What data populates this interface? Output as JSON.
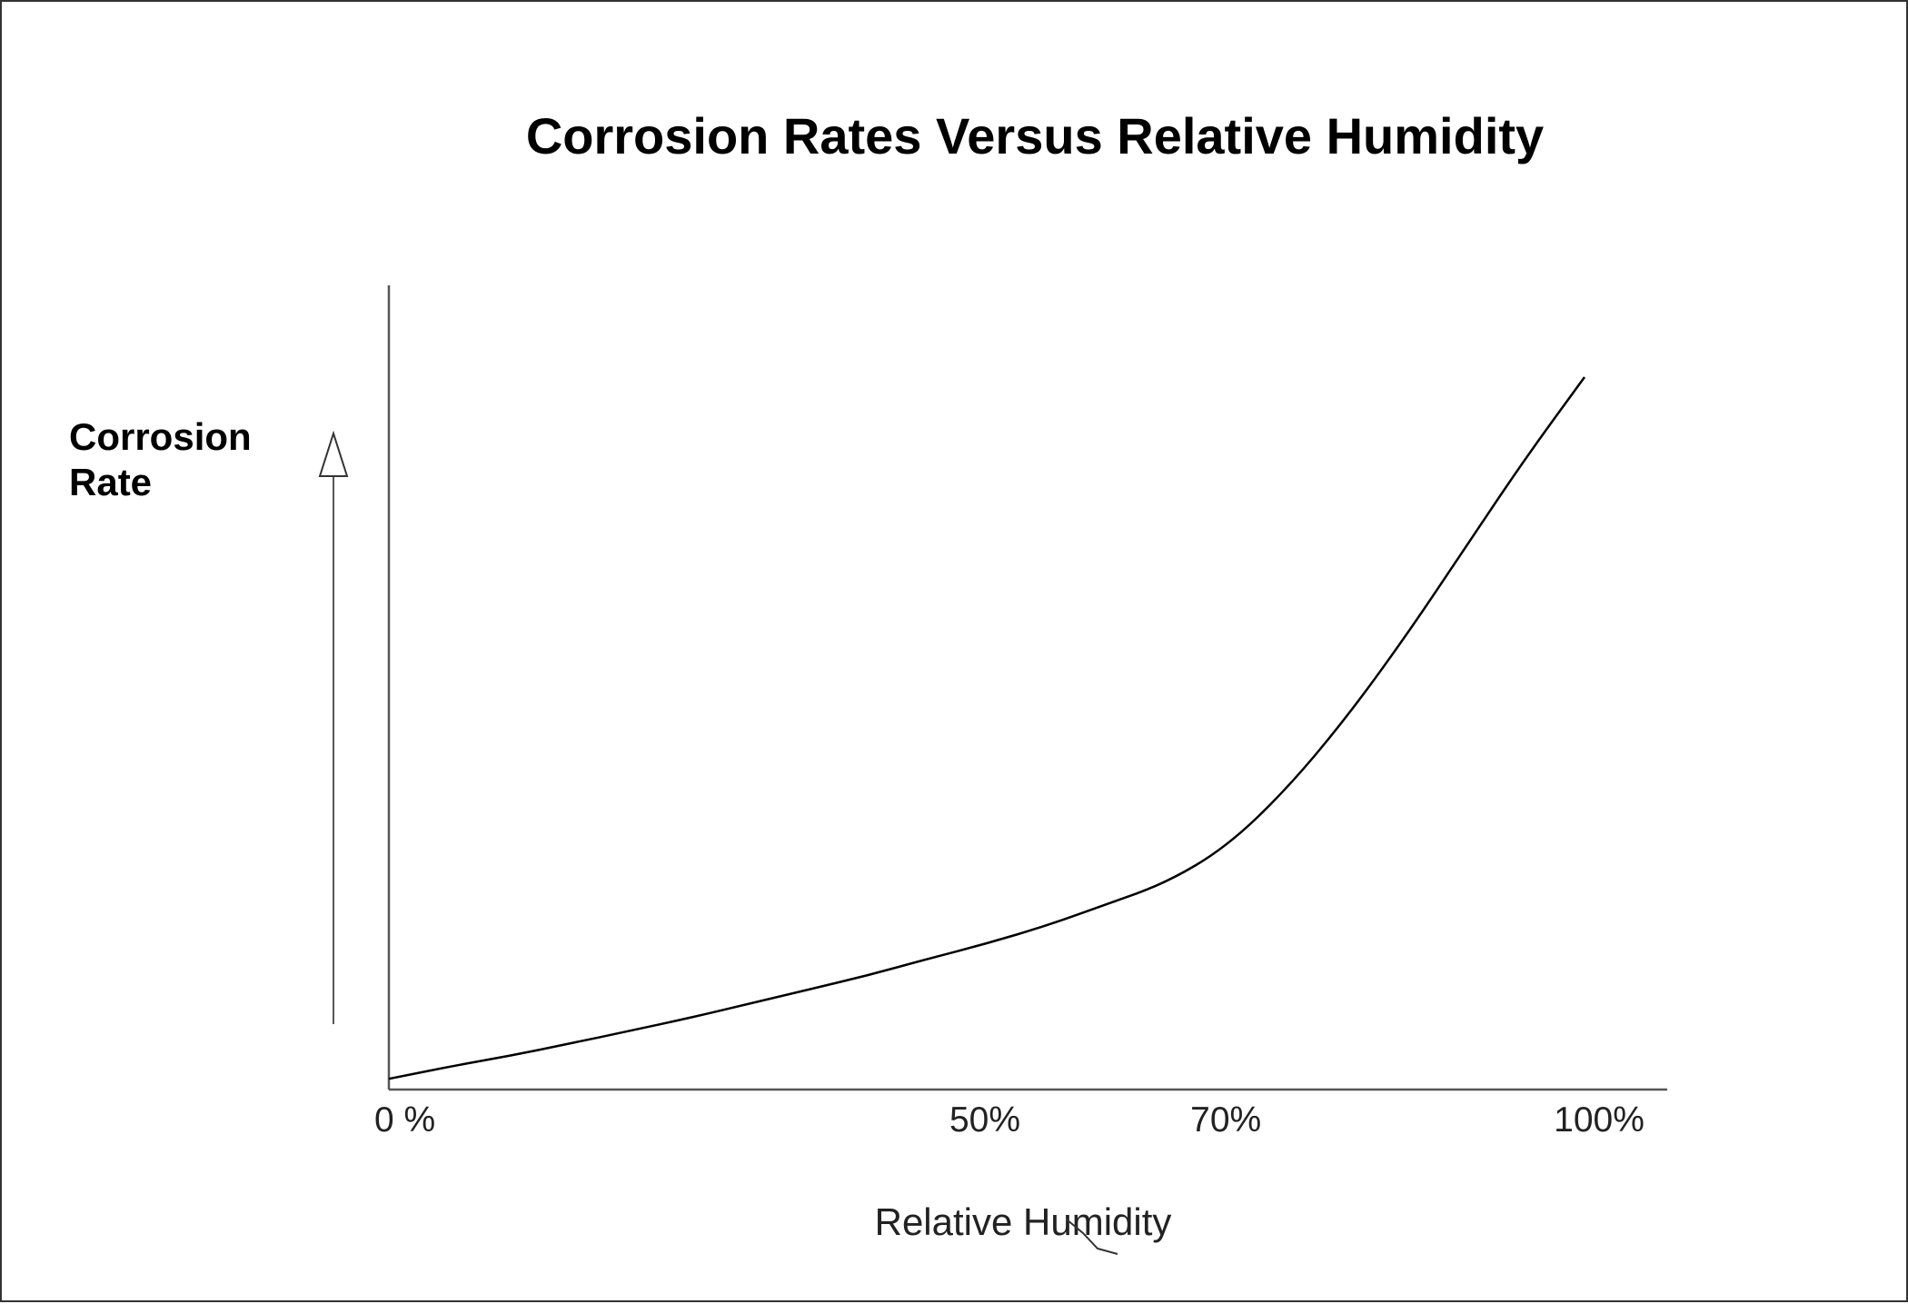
{
  "chart_data": {
    "type": "line",
    "title": "Corrosion Rates Versus Relative Humidity",
    "xlabel": "Relative Humidity",
    "ylabel_lines": [
      "Corrosion",
      "Rate"
    ],
    "x_ticks": [
      {
        "value": 0,
        "label": "0 %"
      },
      {
        "value": 50,
        "label": "50%"
      },
      {
        "value": 70,
        "label": "70%"
      },
      {
        "value": 100,
        "label": "100%"
      }
    ],
    "xlim": [
      0,
      107
    ],
    "ylim": [
      0,
      100
    ],
    "y_ticks_shown": false,
    "grid": false,
    "legend": "none",
    "series": [
      {
        "points": [
          {
            "x": 0,
            "y": 1.5
          },
          {
            "x": 5,
            "y": 3.2
          },
          {
            "x": 10,
            "y": 4.7
          },
          {
            "x": 15,
            "y": 6.4
          },
          {
            "x": 20,
            "y": 8.2
          },
          {
            "x": 25,
            "y": 10.0
          },
          {
            "x": 30,
            "y": 12.0
          },
          {
            "x": 35,
            "y": 14.0
          },
          {
            "x": 40,
            "y": 16.0
          },
          {
            "x": 45,
            "y": 18.3
          },
          {
            "x": 50,
            "y": 20.5
          },
          {
            "x": 55,
            "y": 23.0
          },
          {
            "x": 60,
            "y": 26.0
          },
          {
            "x": 65,
            "y": 29.0
          },
          {
            "x": 70,
            "y": 34.0
          },
          {
            "x": 75,
            "y": 42.0
          },
          {
            "x": 80,
            "y": 52.0
          },
          {
            "x": 85,
            "y": 63.5
          },
          {
            "x": 90,
            "y": 76.0
          },
          {
            "x": 95,
            "y": 88.5
          },
          {
            "x": 100,
            "y": 100
          }
        ]
      }
    ],
    "line_color": "#000000",
    "axis_color": "#555555"
  }
}
